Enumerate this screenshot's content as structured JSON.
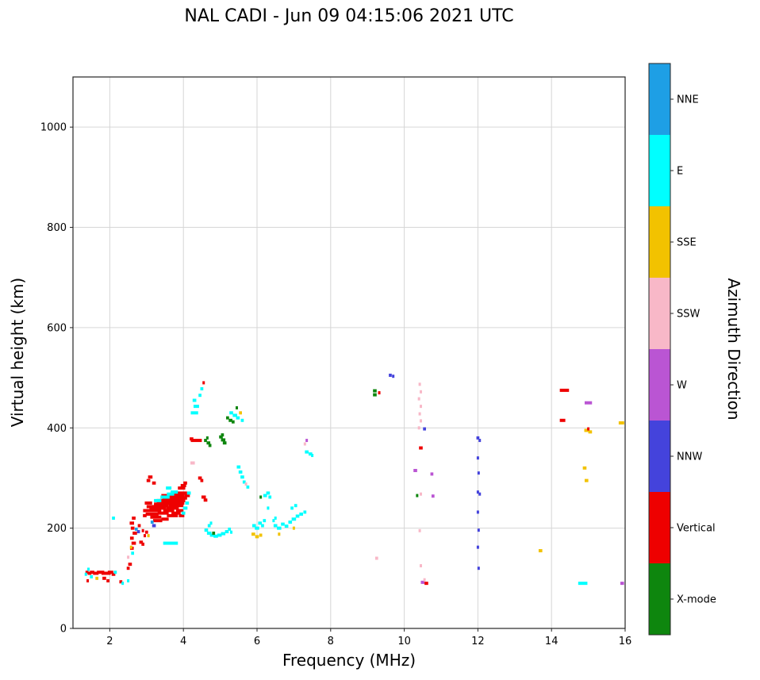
{
  "chart_data": {
    "type": "scatter",
    "title": "NAL CADI - Jun 09 04:15:06 2021 UTC",
    "xlabel": "Frequency (MHz)",
    "ylabel": "Virtual height (km)",
    "colorbar_title": "Azimuth Direction",
    "xlim": [
      1.0,
      16.0
    ],
    "ylim": [
      0,
      1100
    ],
    "xticks": [
      2,
      4,
      6,
      8,
      10,
      12,
      14,
      16
    ],
    "yticks": [
      0,
      200,
      400,
      600,
      800,
      1000
    ],
    "grid": true,
    "legend_position": "right-colorbar",
    "directions": [
      {
        "key": "NNE",
        "label": "NNE",
        "color": "#1E9FE5"
      },
      {
        "key": "E",
        "label": "E",
        "color": "#00FFFF"
      },
      {
        "key": "SSE",
        "label": "SSE",
        "color": "#F2C200"
      },
      {
        "key": "SSW",
        "label": "SSW",
        "color": "#F8B8C8"
      },
      {
        "key": "W",
        "label": "W",
        "color": "#BA55D3"
      },
      {
        "key": "NNW",
        "label": "NNW",
        "color": "#4443DC"
      },
      {
        "key": "V",
        "label": "Vertical",
        "color": "#EE0000"
      },
      {
        "key": "X",
        "label": "X-mode",
        "color": "#0E860E"
      }
    ],
    "points": [
      [
        1.38,
        112,
        "V",
        0.08
      ],
      [
        1.45,
        110,
        "V",
        0.1
      ],
      [
        1.52,
        112,
        "V",
        0.12
      ],
      [
        1.62,
        110,
        "V",
        0.15
      ],
      [
        1.75,
        112,
        "V",
        0.2
      ],
      [
        1.9,
        110,
        "V",
        0.25
      ],
      [
        2.02,
        112,
        "V",
        0.15
      ],
      [
        1.5,
        103,
        "E",
        0.08
      ],
      [
        1.65,
        100,
        "SSE",
        0.08
      ],
      [
        1.42,
        118,
        "E",
        0.06
      ],
      [
        1.85,
        100,
        "V",
        0.1
      ],
      [
        1.95,
        95,
        "V",
        0.08
      ],
      [
        2.1,
        108,
        "V",
        0.1
      ],
      [
        2.15,
        112,
        "E",
        0.08
      ],
      [
        1.35,
        108,
        "E",
        0.06
      ],
      [
        1.4,
        95,
        "V",
        0.06
      ],
      [
        2.3,
        93,
        "V",
        0.08
      ],
      [
        2.35,
        90,
        "E",
        0.06
      ],
      [
        2.5,
        95,
        "E",
        0.06
      ],
      [
        2.55,
        128,
        "V",
        0.1
      ],
      [
        2.5,
        120,
        "V",
        0.08
      ],
      [
        2.1,
        220,
        "E",
        0.08
      ],
      [
        2.62,
        150,
        "E",
        0.08
      ],
      [
        2.6,
        160,
        "V",
        0.1
      ],
      [
        2.65,
        170,
        "V",
        0.12
      ],
      [
        2.6,
        180,
        "V",
        0.1
      ],
      [
        2.68,
        190,
        "V",
        0.12
      ],
      [
        2.62,
        200,
        "V",
        0.1
      ],
      [
        2.6,
        210,
        "V",
        0.12
      ],
      [
        2.65,
        220,
        "V",
        0.1
      ],
      [
        2.72,
        198,
        "NNE",
        0.08
      ],
      [
        2.78,
        193,
        "NNW",
        0.08
      ],
      [
        2.58,
        162,
        "SSE",
        0.06
      ],
      [
        2.85,
        172,
        "V",
        0.1
      ],
      [
        2.9,
        168,
        "V",
        0.08
      ],
      [
        2.5,
        142,
        "SSW",
        0.06
      ],
      [
        2.8,
        205,
        "V",
        0.08
      ],
      [
        2.9,
        195,
        "V",
        0.06
      ],
      [
        2.95,
        185,
        "V",
        0.06
      ],
      [
        3.15,
        228,
        "V",
        0.35
      ],
      [
        3.2,
        235,
        "V",
        0.4
      ],
      [
        3.3,
        240,
        "V",
        0.45
      ],
      [
        3.25,
        222,
        "V",
        0.3
      ],
      [
        3.4,
        245,
        "V",
        0.4
      ],
      [
        3.5,
        250,
        "V",
        0.45
      ],
      [
        3.55,
        255,
        "V",
        0.4
      ],
      [
        3.6,
        260,
        "V",
        0.35
      ],
      [
        3.45,
        230,
        "V",
        0.3
      ],
      [
        3.6,
        235,
        "V",
        0.3
      ],
      [
        3.7,
        240,
        "V",
        0.35
      ],
      [
        3.8,
        245,
        "V",
        0.4
      ],
      [
        3.85,
        250,
        "V",
        0.35
      ],
      [
        3.9,
        255,
        "V",
        0.3
      ],
      [
        3.75,
        260,
        "V",
        0.3
      ],
      [
        3.85,
        265,
        "V",
        0.35
      ],
      [
        3.95,
        270,
        "V",
        0.3
      ],
      [
        3.7,
        225,
        "V",
        0.3
      ],
      [
        3.8,
        230,
        "V",
        0.25
      ],
      [
        3.9,
        235,
        "V",
        0.2
      ],
      [
        3.3,
        215,
        "V",
        0.25
      ],
      [
        3.5,
        218,
        "V",
        0.2
      ],
      [
        3.15,
        243,
        "V",
        0.3
      ],
      [
        3.35,
        248,
        "V",
        0.3
      ],
      [
        3.45,
        255,
        "V",
        0.35
      ],
      [
        3.55,
        265,
        "V",
        0.3
      ],
      [
        3.65,
        250,
        "V",
        0.3
      ],
      [
        3.7,
        255,
        "V",
        0.25
      ],
      [
        3.9,
        262,
        "V",
        0.2
      ],
      [
        3.8,
        268,
        "V",
        0.2
      ],
      [
        2.98,
        235,
        "V",
        0.15
      ],
      [
        2.95,
        225,
        "V",
        0.1
      ],
      [
        3.05,
        250,
        "V",
        0.2
      ],
      [
        3.3,
        255,
        "E",
        0.2
      ],
      [
        3.5,
        262,
        "E",
        0.25
      ],
      [
        3.65,
        268,
        "E",
        0.2
      ],
      [
        3.75,
        272,
        "E",
        0.2
      ],
      [
        3.6,
        280,
        "E",
        0.15
      ],
      [
        3.2,
        205,
        "NNW",
        0.1
      ],
      [
        3.15,
        212,
        "NNE",
        0.08
      ],
      [
        3.05,
        295,
        "V",
        0.1
      ],
      [
        3.1,
        302,
        "V",
        0.12
      ],
      [
        3.2,
        290,
        "V",
        0.1
      ],
      [
        3.0,
        192,
        "V",
        0.08
      ],
      [
        3.05,
        185,
        "SSE",
        0.06
      ],
      [
        3.65,
        170,
        "E",
        0.4
      ],
      [
        3.95,
        280,
        "V",
        0.2
      ],
      [
        4.0,
        285,
        "V",
        0.15
      ],
      [
        4.05,
        290,
        "V",
        0.1
      ],
      [
        3.95,
        225,
        "V",
        0.15
      ],
      [
        4.0,
        230,
        "E",
        0.1
      ],
      [
        4.05,
        240,
        "E",
        0.12
      ],
      [
        4.1,
        250,
        "E",
        0.1
      ],
      [
        4.0,
        260,
        "V",
        0.2
      ],
      [
        4.1,
        265,
        "V",
        0.15
      ],
      [
        4.15,
        270,
        "E",
        0.1
      ],
      [
        4.35,
        375,
        "V",
        0.3
      ],
      [
        4.22,
        378,
        "V",
        0.1
      ],
      [
        4.3,
        430,
        "E",
        0.2
      ],
      [
        4.35,
        443,
        "E",
        0.15
      ],
      [
        4.3,
        455,
        "E",
        0.1
      ],
      [
        4.45,
        465,
        "E",
        0.08
      ],
      [
        4.5,
        478,
        "E",
        0.08
      ],
      [
        4.55,
        490,
        "V",
        0.06
      ],
      [
        4.25,
        330,
        "SSW",
        0.12
      ],
      [
        4.45,
        300,
        "V",
        0.1
      ],
      [
        4.5,
        295,
        "V",
        0.08
      ],
      [
        4.55,
        262,
        "V",
        0.12
      ],
      [
        4.6,
        256,
        "V",
        0.1
      ],
      [
        4.6,
        375,
        "X",
        0.08
      ],
      [
        4.68,
        370,
        "X",
        0.1
      ],
      [
        4.72,
        365,
        "X",
        0.08
      ],
      [
        4.65,
        380,
        "X",
        0.06
      ],
      [
        4.62,
        196,
        "E",
        0.1
      ],
      [
        4.7,
        190,
        "E",
        0.12
      ],
      [
        4.78,
        186,
        "E",
        0.12
      ],
      [
        4.88,
        184,
        "E",
        0.12
      ],
      [
        4.98,
        186,
        "E",
        0.12
      ],
      [
        5.08,
        189,
        "E",
        0.12
      ],
      [
        5.18,
        193,
        "E",
        0.1
      ],
      [
        4.82,
        190,
        "X",
        0.08
      ],
      [
        4.7,
        205,
        "E",
        0.08
      ],
      [
        4.75,
        210,
        "E",
        0.06
      ],
      [
        5.25,
        198,
        "E",
        0.08
      ],
      [
        5.3,
        192,
        "E",
        0.06
      ],
      [
        5.02,
        382,
        "X",
        0.1
      ],
      [
        5.08,
        376,
        "X",
        0.12
      ],
      [
        5.12,
        370,
        "X",
        0.1
      ],
      [
        5.06,
        386,
        "X",
        0.08
      ],
      [
        5.2,
        420,
        "X",
        0.08
      ],
      [
        5.28,
        415,
        "X",
        0.1
      ],
      [
        5.35,
        412,
        "X",
        0.08
      ],
      [
        5.3,
        430,
        "E",
        0.1
      ],
      [
        5.4,
        425,
        "E",
        0.12
      ],
      [
        5.48,
        420,
        "E",
        0.1
      ],
      [
        5.55,
        430,
        "SSE",
        0.08
      ],
      [
        5.45,
        440,
        "X",
        0.06
      ],
      [
        5.6,
        415,
        "E",
        0.08
      ],
      [
        5.5,
        322,
        "E",
        0.1
      ],
      [
        5.55,
        312,
        "E",
        0.1
      ],
      [
        5.6,
        302,
        "E",
        0.1
      ],
      [
        5.65,
        292,
        "E",
        0.08
      ],
      [
        5.7,
        288,
        "SSW",
        0.06
      ],
      [
        5.75,
        282,
        "E",
        0.08
      ],
      [
        5.9,
        188,
        "SSE",
        0.1
      ],
      [
        6.0,
        183,
        "SSE",
        0.1
      ],
      [
        6.1,
        186,
        "SSE",
        0.08
      ],
      [
        5.92,
        205,
        "E",
        0.1
      ],
      [
        6.0,
        200,
        "E",
        0.12
      ],
      [
        6.08,
        210,
        "E",
        0.1
      ],
      [
        6.15,
        205,
        "E",
        0.08
      ],
      [
        6.2,
        215,
        "E",
        0.08
      ],
      [
        6.22,
        265,
        "E",
        0.1
      ],
      [
        6.3,
        270,
        "E",
        0.1
      ],
      [
        6.35,
        262,
        "E",
        0.08
      ],
      [
        6.1,
        262,
        "X",
        0.06
      ],
      [
        6.3,
        240,
        "E",
        0.06
      ],
      [
        6.5,
        205,
        "E",
        0.1
      ],
      [
        6.6,
        200,
        "E",
        0.12
      ],
      [
        6.7,
        208,
        "E",
        0.1
      ],
      [
        6.8,
        204,
        "E",
        0.1
      ],
      [
        6.9,
        212,
        "E",
        0.1
      ],
      [
        7.0,
        218,
        "E",
        0.12
      ],
      [
        7.1,
        224,
        "E",
        0.1
      ],
      [
        7.2,
        228,
        "E",
        0.1
      ],
      [
        7.3,
        232,
        "E",
        0.08
      ],
      [
        6.95,
        240,
        "E",
        0.08
      ],
      [
        7.05,
        245,
        "E",
        0.08
      ],
      [
        6.6,
        188,
        "SSE",
        0.06
      ],
      [
        7.0,
        200,
        "SSE",
        0.06
      ],
      [
        7.35,
        375,
        "W",
        0.06
      ],
      [
        7.3,
        368,
        "SSW",
        0.06
      ],
      [
        7.35,
        352,
        "E",
        0.1
      ],
      [
        7.45,
        348,
        "E",
        0.1
      ],
      [
        7.5,
        345,
        "E",
        0.06
      ],
      [
        6.45,
        215,
        "E",
        0.06
      ],
      [
        6.5,
        220,
        "E",
        0.06
      ],
      [
        9.25,
        140,
        "SSW",
        0.08
      ],
      [
        9.2,
        466,
        "X",
        0.1
      ],
      [
        9.2,
        474,
        "X",
        0.1
      ],
      [
        9.32,
        470,
        "V",
        0.06
      ],
      [
        9.62,
        505,
        "NNW",
        0.08
      ],
      [
        9.7,
        503,
        "NNW",
        0.06
      ],
      [
        10.42,
        487,
        "SSW",
        0.06
      ],
      [
        10.45,
        472,
        "SSW",
        0.06
      ],
      [
        10.4,
        458,
        "SSW",
        0.06
      ],
      [
        10.45,
        443,
        "SSW",
        0.06
      ],
      [
        10.42,
        428,
        "SSW",
        0.06
      ],
      [
        10.45,
        414,
        "SSW",
        0.06
      ],
      [
        10.4,
        400,
        "SSW",
        0.06
      ],
      [
        10.55,
        398,
        "NNW",
        0.08
      ],
      [
        10.45,
        360,
        "V",
        0.1
      ],
      [
        10.3,
        315,
        "W",
        0.1
      ],
      [
        10.75,
        308,
        "W",
        0.08
      ],
      [
        10.45,
        268,
        "SSW",
        0.06
      ],
      [
        10.78,
        264,
        "W",
        0.08
      ],
      [
        10.35,
        265,
        "X",
        0.06
      ],
      [
        10.42,
        195,
        "SSW",
        0.06
      ],
      [
        10.45,
        125,
        "SSW",
        0.06
      ],
      [
        10.5,
        92,
        "W",
        0.1
      ],
      [
        10.6,
        90,
        "V",
        0.1
      ],
      [
        10.55,
        97,
        "SSW",
        0.06
      ],
      [
        12.0,
        380,
        "NNW",
        0.08
      ],
      [
        12.05,
        375,
        "NNW",
        0.06
      ],
      [
        12.0,
        340,
        "NNW",
        0.06
      ],
      [
        12.02,
        310,
        "NNW",
        0.06
      ],
      [
        12.0,
        272,
        "NNW",
        0.06
      ],
      [
        12.05,
        268,
        "NNW",
        0.06
      ],
      [
        12.0,
        232,
        "NNW",
        0.06
      ],
      [
        12.02,
        196,
        "NNW",
        0.06
      ],
      [
        12.0,
        162,
        "NNW",
        0.06
      ],
      [
        12.02,
        120,
        "NNW",
        0.06
      ],
      [
        13.7,
        155,
        "SSE",
        0.1
      ],
      [
        14.35,
        475,
        "V",
        0.25
      ],
      [
        14.3,
        415,
        "V",
        0.15
      ],
      [
        15.0,
        450,
        "W",
        0.2
      ],
      [
        14.95,
        395,
        "SSE",
        0.12
      ],
      [
        15.05,
        392,
        "SSE",
        0.1
      ],
      [
        15.0,
        398,
        "V",
        0.06
      ],
      [
        14.9,
        320,
        "SSE",
        0.1
      ],
      [
        14.95,
        295,
        "SSE",
        0.1
      ],
      [
        14.85,
        90,
        "E",
        0.25
      ],
      [
        15.9,
        410,
        "SSE",
        0.15
      ],
      [
        15.92,
        90,
        "W",
        0.1
      ]
    ]
  }
}
